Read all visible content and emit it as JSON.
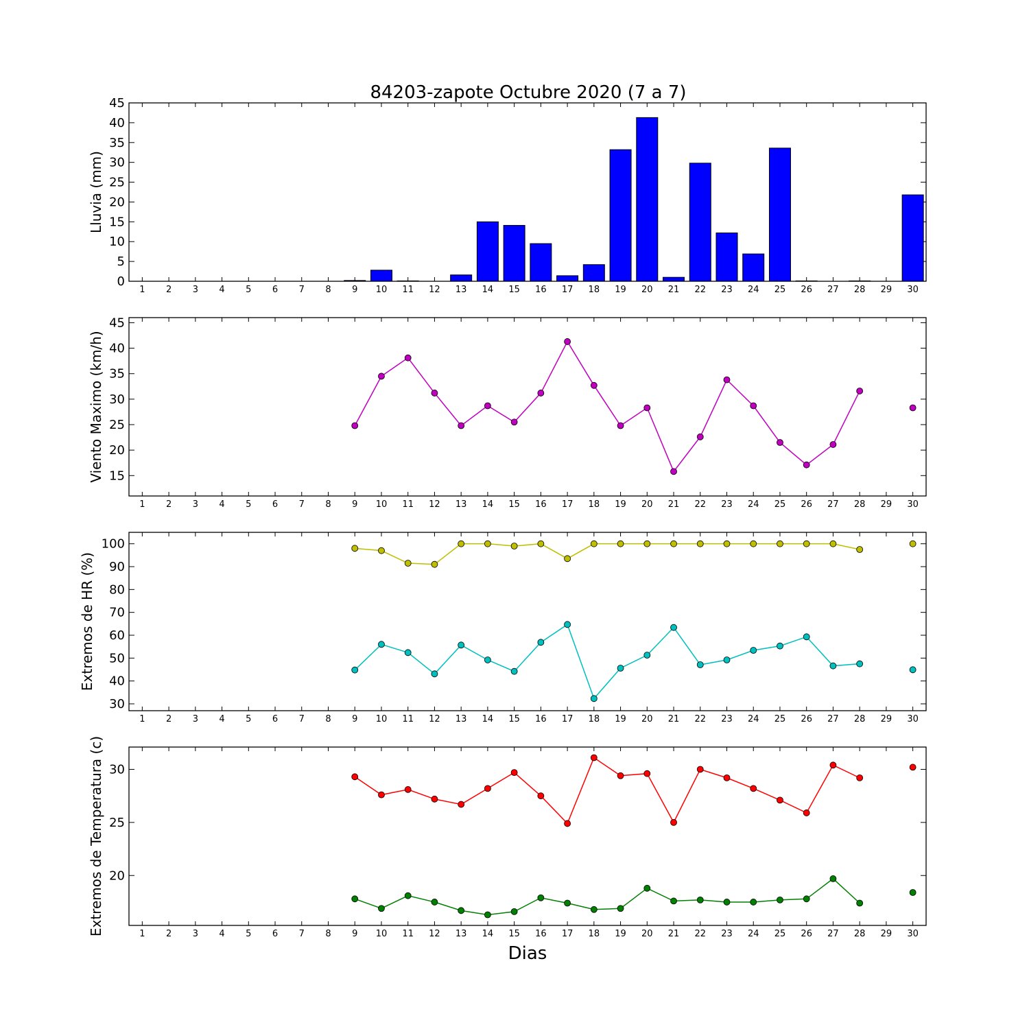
{
  "figure": {
    "title": "84203-zapote Octubre 2020  (7 a 7)",
    "xlabel": "Dias"
  },
  "chart_data": [
    {
      "type": "bar",
      "ylabel": "Lluvia (mm)",
      "x": [
        1,
        2,
        3,
        4,
        5,
        6,
        7,
        8,
        9,
        10,
        11,
        12,
        13,
        14,
        15,
        16,
        17,
        18,
        19,
        20,
        21,
        22,
        23,
        24,
        25,
        26,
        27,
        28,
        29,
        30
      ],
      "xticks": [
        "1",
        "2",
        "3",
        "4",
        "5",
        "6",
        "7",
        "8",
        "9",
        "10",
        "11",
        "12",
        "13",
        "14",
        "15",
        "16",
        "17",
        "18",
        "19",
        "20",
        "21",
        "22",
        "23",
        "24",
        "25",
        "26",
        "27",
        "28",
        "29",
        "30"
      ],
      "xlim": [
        0.5,
        30.5
      ],
      "ylim": [
        0,
        45
      ],
      "yticks": [
        0,
        5,
        10,
        15,
        20,
        25,
        30,
        35,
        40,
        45
      ],
      "series": [
        {
          "color": "#0000ff",
          "values": [
            0,
            0,
            0,
            0,
            0,
            0,
            0,
            0,
            0.2,
            2.8,
            0.1,
            0,
            1.6,
            15.0,
            14.1,
            9.5,
            1.4,
            4.2,
            33.2,
            41.3,
            1.0,
            29.8,
            12.2,
            6.9,
            33.6,
            0.1,
            0,
            0.1,
            0,
            21.8
          ]
        }
      ]
    },
    {
      "type": "line",
      "ylabel": "Viento Maximo (km/h)",
      "x": [
        1,
        2,
        3,
        4,
        5,
        6,
        7,
        8,
        9,
        10,
        11,
        12,
        13,
        14,
        15,
        16,
        17,
        18,
        19,
        20,
        21,
        22,
        23,
        24,
        25,
        26,
        27,
        28,
        29,
        30
      ],
      "xticks": [
        "1",
        "2",
        "3",
        "4",
        "5",
        "6",
        "7",
        "8",
        "9",
        "10",
        "11",
        "12",
        "13",
        "14",
        "15",
        "16",
        "17",
        "18",
        "19",
        "20",
        "21",
        "22",
        "23",
        "24",
        "25",
        "26",
        "27",
        "28",
        "29",
        "30"
      ],
      "xlim": [
        0.5,
        30.5
      ],
      "ylim": [
        11,
        46
      ],
      "yticks": [
        15,
        20,
        25,
        30,
        35,
        40,
        45
      ],
      "series": [
        {
          "color": "#bf00bf",
          "values": [
            null,
            null,
            null,
            null,
            null,
            null,
            null,
            null,
            24.8,
            34.5,
            38.1,
            31.2,
            24.8,
            28.7,
            25.5,
            31.2,
            41.3,
            32.7,
            24.8,
            28.3,
            15.8,
            22.6,
            33.8,
            28.7,
            21.5,
            17.1,
            21.1,
            31.6,
            null,
            28.3
          ]
        }
      ]
    },
    {
      "type": "line",
      "ylabel": "Extremos de HR (%)",
      "x": [
        1,
        2,
        3,
        4,
        5,
        6,
        7,
        8,
        9,
        10,
        11,
        12,
        13,
        14,
        15,
        16,
        17,
        18,
        19,
        20,
        21,
        22,
        23,
        24,
        25,
        26,
        27,
        28,
        29,
        30
      ],
      "xticks": [
        "1",
        "2",
        "3",
        "4",
        "5",
        "6",
        "7",
        "8",
        "9",
        "10",
        "11",
        "12",
        "13",
        "14",
        "15",
        "16",
        "17",
        "18",
        "19",
        "20",
        "21",
        "22",
        "23",
        "24",
        "25",
        "26",
        "27",
        "28",
        "29",
        "30"
      ],
      "xlim": [
        0.5,
        30.5
      ],
      "ylim": [
        27,
        105
      ],
      "yticks": [
        30,
        40,
        50,
        60,
        70,
        80,
        90,
        100
      ],
      "series": [
        {
          "color": "#bfbf00",
          "values": [
            null,
            null,
            null,
            null,
            null,
            null,
            null,
            null,
            98,
            97,
            91.5,
            91,
            100,
            100,
            99,
            100,
            93.5,
            100,
            100,
            100,
            100,
            100,
            100,
            100,
            100,
            100,
            100,
            97.5,
            null,
            100
          ]
        },
        {
          "color": "#00bfbf",
          "values": [
            null,
            null,
            null,
            null,
            null,
            null,
            null,
            null,
            44.8,
            56,
            52.4,
            43.1,
            55.7,
            49.2,
            44.2,
            56.9,
            64.7,
            32.3,
            45.6,
            51.3,
            63.4,
            47.1,
            49.2,
            53.4,
            55.3,
            59.3,
            46.6,
            47.5,
            null,
            44.9
          ]
        }
      ]
    },
    {
      "type": "line",
      "ylabel": "Extremos de Temperatura (c)",
      "x": [
        1,
        2,
        3,
        4,
        5,
        6,
        7,
        8,
        9,
        10,
        11,
        12,
        13,
        14,
        15,
        16,
        17,
        18,
        19,
        20,
        21,
        22,
        23,
        24,
        25,
        26,
        27,
        28,
        29,
        30
      ],
      "xticks": [
        "1",
        "2",
        "3",
        "4",
        "5",
        "6",
        "7",
        "8",
        "9",
        "10",
        "11",
        "12",
        "13",
        "14",
        "15",
        "16",
        "17",
        "18",
        "19",
        "20",
        "21",
        "22",
        "23",
        "24",
        "25",
        "26",
        "27",
        "28",
        "29",
        "30"
      ],
      "xlim": [
        0.5,
        30.5
      ],
      "ylim": [
        15.3,
        32.1
      ],
      "yticks": [
        20,
        25,
        30
      ],
      "series": [
        {
          "color": "#ff0000",
          "values": [
            null,
            null,
            null,
            null,
            null,
            null,
            null,
            null,
            29.3,
            27.6,
            28.1,
            27.2,
            26.7,
            28.2,
            29.7,
            27.5,
            24.9,
            31.1,
            29.4,
            29.6,
            25.0,
            30.0,
            29.2,
            28.2,
            27.1,
            25.9,
            30.4,
            29.2,
            null,
            30.2
          ]
        },
        {
          "color": "#008000",
          "values": [
            null,
            null,
            null,
            null,
            null,
            null,
            null,
            null,
            17.8,
            16.9,
            18.1,
            17.5,
            16.7,
            16.3,
            16.6,
            17.9,
            17.4,
            16.8,
            16.9,
            18.8,
            17.6,
            17.7,
            17.5,
            17.5,
            17.7,
            17.8,
            19.7,
            17.4,
            null,
            18.4
          ]
        }
      ]
    }
  ]
}
